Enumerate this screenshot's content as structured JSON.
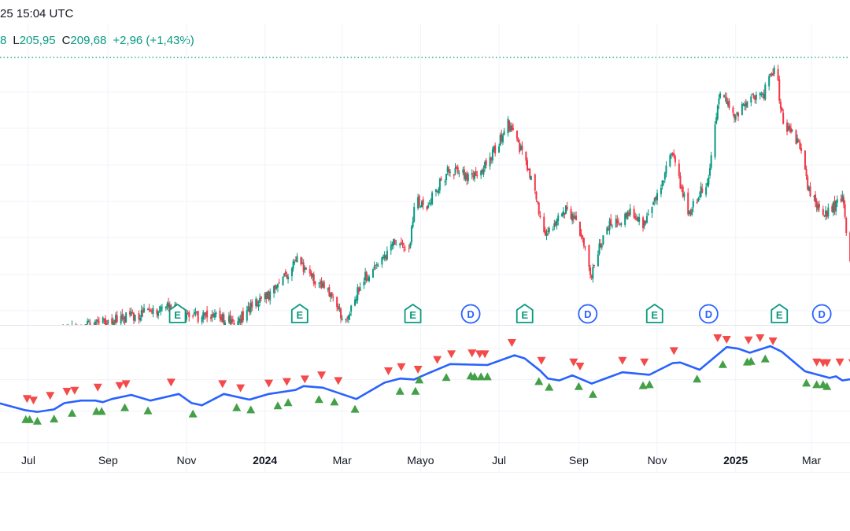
{
  "header": {
    "datetime": "25 15:04 UTC",
    "prev_value_fragment": "8",
    "low_key": "L",
    "low_value": "205,95",
    "close_key": "C",
    "close_value": "209,68",
    "change": "+2,96 (+1,43%)"
  },
  "colors": {
    "up": "#089981",
    "down": "#f23645",
    "ma_line": "#2962ff",
    "buy_marker": "#43a047",
    "sell_marker": "#f44a4a",
    "earnings_badge": "#089981",
    "dividend_badge": "#2962ff",
    "grid": "#f0f3fa"
  },
  "chart_data": [
    {
      "type": "candlestick",
      "pane": "main",
      "title": "",
      "price_path": [
        [
          "2023-06-01",
          139
        ],
        [
          "2023-07-15",
          141
        ],
        [
          "2023-08-10",
          143
        ],
        [
          "2023-08-28",
          146
        ],
        [
          "2023-09-15",
          147
        ],
        [
          "2023-10-09",
          150
        ],
        [
          "2023-10-19",
          152
        ],
        [
          "2023-11-03",
          147
        ],
        [
          "2023-11-21",
          148
        ],
        [
          "2023-12-10",
          145
        ],
        [
          "2023-12-22",
          152
        ],
        [
          "2024-01-09",
          157
        ],
        [
          "2024-01-26",
          168
        ],
        [
          "2024-02-09",
          161
        ],
        [
          "2024-02-21",
          155
        ],
        [
          "2024-03-04",
          145
        ],
        [
          "2024-03-16",
          161
        ],
        [
          "2024-03-29",
          165
        ],
        [
          "2024-04-10",
          175
        ],
        [
          "2024-04-22",
          171
        ],
        [
          "2024-04-27",
          191
        ],
        [
          "2024-05-04",
          187
        ],
        [
          "2024-05-23",
          201
        ],
        [
          "2024-06-10",
          198
        ],
        [
          "2024-06-22",
          203
        ],
        [
          "2024-07-08",
          218
        ],
        [
          "2024-07-20",
          206
        ],
        [
          "2024-07-29",
          194
        ],
        [
          "2024-08-04",
          177
        ],
        [
          "2024-08-23",
          187
        ],
        [
          "2024-09-04",
          177
        ],
        [
          "2024-09-10",
          162
        ],
        [
          "2024-09-22",
          180
        ],
        [
          "2024-10-11",
          185
        ],
        [
          "2024-10-23",
          181
        ],
        [
          "2024-11-04",
          196
        ],
        [
          "2024-11-13",
          207
        ],
        [
          "2024-11-25",
          185
        ],
        [
          "2024-12-11",
          198
        ],
        [
          "2024-12-14",
          211
        ],
        [
          "2024-12-20",
          230
        ],
        [
          "2025-01-01",
          220
        ],
        [
          "2025-01-10",
          226
        ],
        [
          "2025-01-23",
          229
        ],
        [
          "2025-02-01",
          239
        ],
        [
          "2025-02-07",
          217
        ],
        [
          "2025-02-19",
          211
        ],
        [
          "2025-02-28",
          191
        ],
        [
          "2025-03-13",
          185
        ],
        [
          "2025-03-25",
          191
        ],
        [
          "2025-03-31",
          168
        ]
      ],
      "high_line": 242,
      "events": [
        {
          "type": "E",
          "date": "2023-10-25"
        },
        {
          "type": "E",
          "date": "2024-01-28"
        },
        {
          "type": "E",
          "date": "2024-04-25"
        },
        {
          "type": "D",
          "date": "2024-06-09"
        },
        {
          "type": "E",
          "date": "2024-07-21"
        },
        {
          "type": "D",
          "date": "2024-09-08"
        },
        {
          "type": "E",
          "date": "2024-10-30"
        },
        {
          "type": "D",
          "date": "2024-12-11"
        },
        {
          "type": "E",
          "date": "2025-02-04"
        },
        {
          "type": "D",
          "date": "2025-03-09"
        }
      ]
    },
    {
      "type": "line",
      "pane": "indicator",
      "series": [
        {
          "values": [
            [
              "2023-06-08",
              12.6
            ],
            [
              "2023-06-29",
              10.3
            ],
            [
              "2023-07-08",
              9.8
            ],
            [
              "2023-07-21",
              10.6
            ],
            [
              "2023-07-29",
              12.6
            ],
            [
              "2023-08-11",
              13.4
            ],
            [
              "2023-08-22",
              13.4
            ],
            [
              "2023-08-28",
              12.9
            ],
            [
              "2023-09-04",
              13.9
            ],
            [
              "2023-09-19",
              15.2
            ],
            [
              "2023-10-04",
              13.4
            ],
            [
              "2023-10-26",
              15.5
            ],
            [
              "2023-11-05",
              12.6
            ],
            [
              "2023-11-13",
              11.9
            ],
            [
              "2023-11-30",
              15.5
            ],
            [
              "2023-12-20",
              13.7
            ],
            [
              "2024-01-04",
              15.5
            ],
            [
              "2024-01-25",
              16.8
            ],
            [
              "2024-01-31",
              18.0
            ],
            [
              "2024-02-15",
              17.5
            ],
            [
              "2024-03-12",
              13.9
            ],
            [
              "2024-04-03",
              19.1
            ],
            [
              "2024-04-15",
              20.4
            ],
            [
              "2024-04-26",
              20.1
            ],
            [
              "2024-05-06",
              21.9
            ],
            [
              "2024-05-24",
              25.0
            ],
            [
              "2024-06-22",
              24.7
            ],
            [
              "2024-07-13",
              27.8
            ],
            [
              "2024-07-21",
              26.8
            ],
            [
              "2024-08-02",
              22.9
            ],
            [
              "2024-08-08",
              20.4
            ],
            [
              "2024-08-17",
              19.8
            ],
            [
              "2024-08-27",
              21.4
            ],
            [
              "2024-09-11",
              18.8
            ],
            [
              "2024-10-05",
              22.4
            ],
            [
              "2024-10-26",
              21.6
            ],
            [
              "2024-11-13",
              25.3
            ],
            [
              "2024-11-19",
              25.5
            ],
            [
              "2024-12-04",
              23.2
            ],
            [
              "2024-12-25",
              30.4
            ],
            [
              "2025-01-03",
              29.9
            ],
            [
              "2025-01-12",
              28.6
            ],
            [
              "2025-01-28",
              30.7
            ],
            [
              "2025-02-06",
              28.9
            ],
            [
              "2025-02-24",
              22.7
            ],
            [
              "2025-03-15",
              20.6
            ],
            [
              "2025-03-20",
              21.1
            ],
            [
              "2025-03-25",
              19.8
            ],
            [
              "2025-04-04",
              20.4
            ]
          ]
        }
      ],
      "sell_markers": [
        [
          "2023-06-30",
          13.9
        ],
        [
          "2023-07-05",
          13.4
        ],
        [
          "2023-07-18",
          14.9
        ],
        [
          "2023-07-31",
          16.2
        ],
        [
          "2023-08-06",
          16.5
        ],
        [
          "2023-08-24",
          17.5
        ],
        [
          "2023-09-10",
          18.0
        ],
        [
          "2023-09-15",
          18.6
        ],
        [
          "2023-10-20",
          19.1
        ],
        [
          "2023-11-29",
          18.6
        ],
        [
          "2023-12-13",
          17.3
        ],
        [
          "2024-01-04",
          18.8
        ],
        [
          "2024-01-18",
          19.3
        ],
        [
          "2024-02-01",
          20.1
        ],
        [
          "2024-02-14",
          21.4
        ],
        [
          "2024-02-27",
          19.6
        ],
        [
          "2024-04-06",
          22.7
        ],
        [
          "2024-04-16",
          24.0
        ],
        [
          "2024-04-29",
          23.2
        ],
        [
          "2024-05-14",
          26.3
        ],
        [
          "2024-05-25",
          28.1
        ],
        [
          "2024-06-10",
          28.4
        ],
        [
          "2024-06-16",
          28.1
        ],
        [
          "2024-06-20",
          28.1
        ],
        [
          "2024-07-11",
          31.7
        ],
        [
          "2024-08-03",
          26.0
        ],
        [
          "2024-08-28",
          25.5
        ],
        [
          "2024-09-02",
          24.2
        ],
        [
          "2024-10-05",
          26.0
        ],
        [
          "2024-10-22",
          25.5
        ],
        [
          "2024-11-14",
          29.1
        ],
        [
          "2024-12-18",
          33.2
        ],
        [
          "2024-12-25",
          32.7
        ],
        [
          "2025-01-11",
          32.5
        ],
        [
          "2025-01-20",
          33.2
        ],
        [
          "2025-01-30",
          32.2
        ],
        [
          "2025-03-05",
          25.5
        ],
        [
          "2025-03-10",
          25.3
        ],
        [
          "2025-03-13",
          25.3
        ],
        [
          "2025-03-23",
          25.5
        ],
        [
          "2025-04-02",
          25.3
        ]
      ],
      "buy_markers": [
        [
          "2023-06-29",
          7.5
        ],
        [
          "2023-07-02",
          7.5
        ],
        [
          "2023-07-08",
          7.0
        ],
        [
          "2023-07-21",
          7.7
        ],
        [
          "2023-08-04",
          9.5
        ],
        [
          "2023-08-23",
          10.1
        ],
        [
          "2023-08-27",
          10.1
        ],
        [
          "2023-09-14",
          11.3
        ],
        [
          "2023-10-02",
          10.3
        ],
        [
          "2023-11-06",
          9.3
        ],
        [
          "2023-12-10",
          11.3
        ],
        [
          "2023-12-21",
          10.6
        ],
        [
          "2024-01-11",
          11.9
        ],
        [
          "2024-01-19",
          12.9
        ],
        [
          "2024-02-12",
          13.9
        ],
        [
          "2024-02-24",
          13.1
        ],
        [
          "2024-03-11",
          10.8
        ],
        [
          "2024-04-15",
          16.5
        ],
        [
          "2024-04-27",
          16.5
        ],
        [
          "2024-04-30",
          20.1
        ],
        [
          "2024-05-21",
          20.9
        ],
        [
          "2024-06-09",
          21.4
        ],
        [
          "2024-06-12",
          21.1
        ],
        [
          "2024-06-17",
          21.1
        ],
        [
          "2024-06-22",
          21.1
        ],
        [
          "2024-08-01",
          19.6
        ],
        [
          "2024-08-09",
          17.8
        ],
        [
          "2024-09-01",
          18.0
        ],
        [
          "2024-09-12",
          15.5
        ],
        [
          "2024-10-21",
          18.3
        ],
        [
          "2024-10-26",
          18.6
        ],
        [
          "2024-12-02",
          20.4
        ],
        [
          "2024-12-22",
          25.0
        ],
        [
          "2025-01-10",
          25.8
        ],
        [
          "2025-01-13",
          26.0
        ],
        [
          "2025-01-24",
          26.8
        ],
        [
          "2025-02-25",
          19.1
        ],
        [
          "2025-03-05",
          18.6
        ],
        [
          "2025-03-10",
          18.6
        ],
        [
          "2025-03-13",
          18.0
        ]
      ]
    }
  ],
  "x_axis": {
    "ticks": [
      {
        "label": "Jul",
        "date": "2023-07-01",
        "bold": false
      },
      {
        "label": "Sep",
        "date": "2023-09-01",
        "bold": false
      },
      {
        "label": "Nov",
        "date": "2023-11-01",
        "bold": false
      },
      {
        "label": "2024",
        "date": "2024-01-01",
        "bold": true
      },
      {
        "label": "Mar",
        "date": "2024-03-01",
        "bold": false
      },
      {
        "label": "Mayo",
        "date": "2024-05-01",
        "bold": false
      },
      {
        "label": "Jul",
        "date": "2024-07-01",
        "bold": false
      },
      {
        "label": "Sep",
        "date": "2024-09-01",
        "bold": false
      },
      {
        "label": "Nov",
        "date": "2024-11-01",
        "bold": false
      },
      {
        "label": "2025",
        "date": "2025-01-01",
        "bold": true
      },
      {
        "label": "Mar",
        "date": "2025-03-01",
        "bold": false
      }
    ]
  }
}
